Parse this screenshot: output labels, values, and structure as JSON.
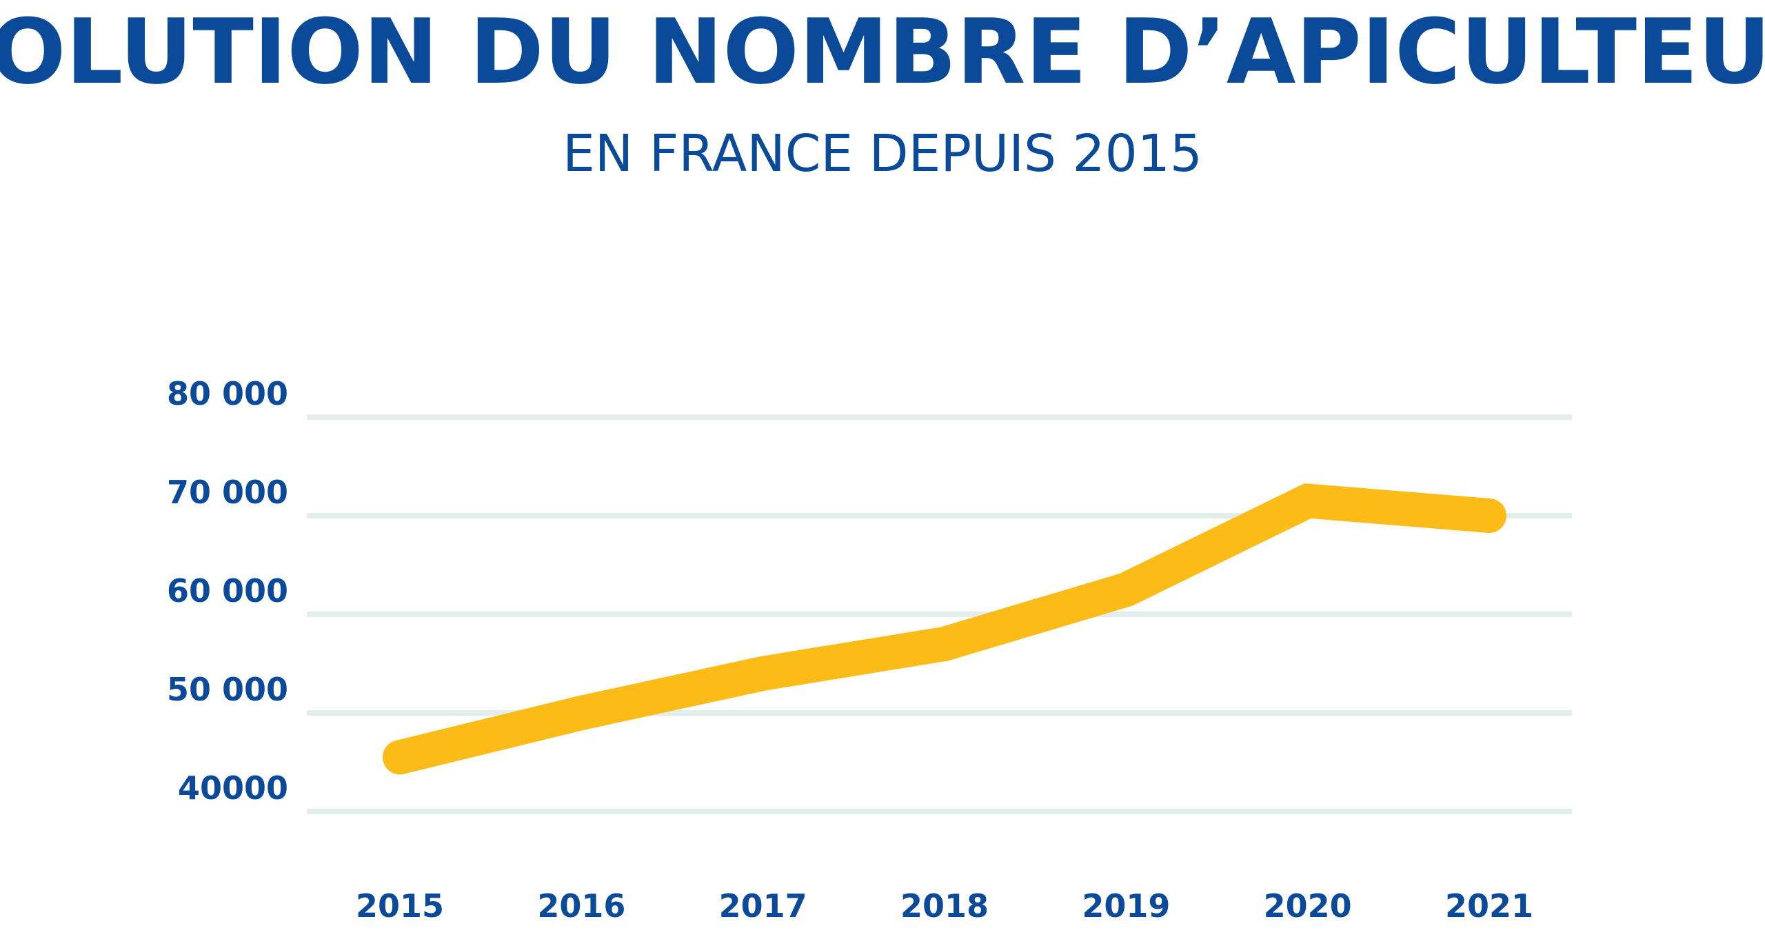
{
  "colors": {
    "text": "#0b4a99",
    "line": "#fbbc1a",
    "grid": "#e2eeeb",
    "background": "#ffffff"
  },
  "chart_data": {
    "type": "line",
    "title": "ÉVOLUTION DU NOMBRE D’APICULTEURS",
    "subtitle": "EN FRANCE DEPUIS 2015",
    "xlabel": "",
    "ylabel": "",
    "categories": [
      "2015",
      "2016",
      "2017",
      "2018",
      "2019",
      "2020",
      "2021"
    ],
    "series": [
      {
        "values": [
          45500,
          50000,
          54000,
          57000,
          62500,
          71500,
          70000
        ]
      }
    ],
    "ylim": [
      40000,
      80000
    ],
    "yticks": [
      40000,
      50000,
      60000,
      70000,
      80000
    ],
    "ytick_labels": [
      "40000",
      "50 000",
      "60 000",
      "70 000",
      "80 000"
    ],
    "grid": true,
    "legend": "none"
  }
}
